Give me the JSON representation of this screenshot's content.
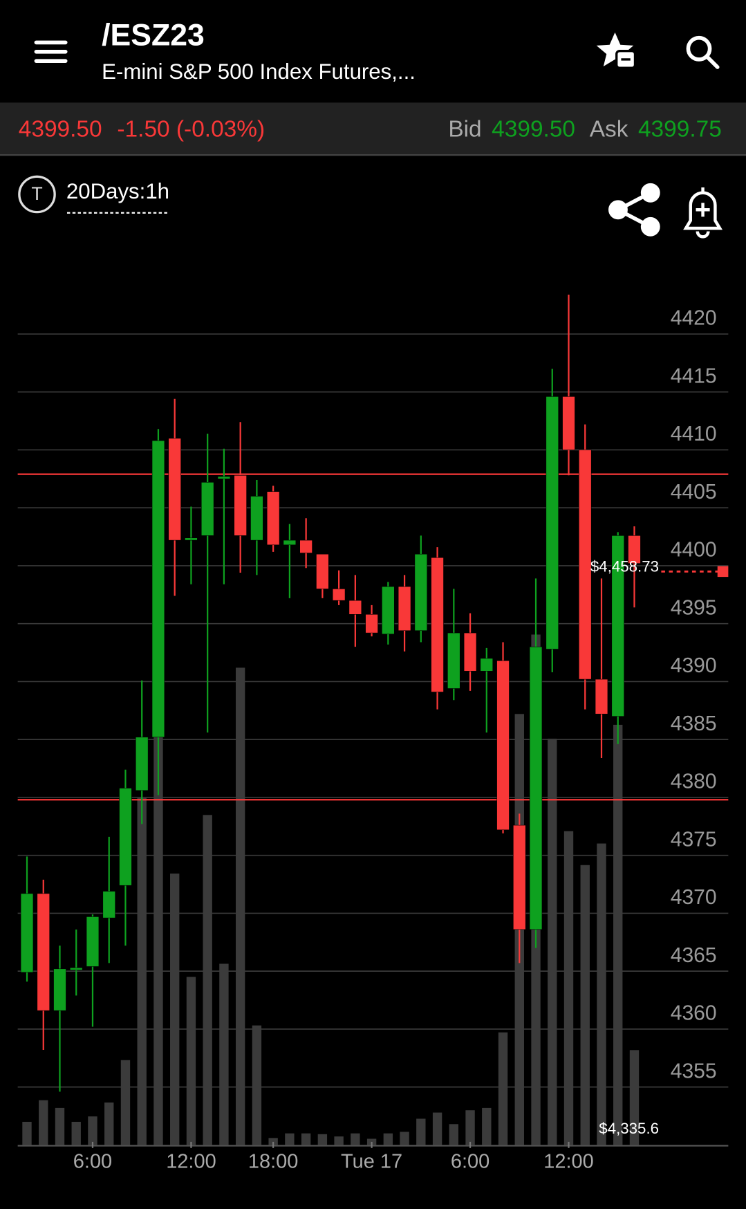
{
  "header": {
    "title": "/ESZ23",
    "subtitle": "E-mini S&P 500 Index Futures,..."
  },
  "quote": {
    "last": "4399.50",
    "change": "-1.50 (-0.03%)",
    "bid_label": "Bid",
    "bid": "4399.50",
    "ask_label": "Ask",
    "ask": "4399.75"
  },
  "toolbar": {
    "period_icon": "T",
    "period": "20Days:1h"
  },
  "chart_data": {
    "type": "candlestick",
    "categories": [
      null,
      null,
      null,
      null,
      "6:00",
      null,
      null,
      null,
      null,
      null,
      "12:00",
      null,
      null,
      null,
      null,
      "18:00",
      null,
      null,
      null,
      null,
      null,
      "Tue 17",
      null,
      null,
      null,
      null,
      null,
      "6:00",
      null,
      null,
      null,
      null,
      null,
      "12:00",
      null,
      null,
      null,
      null
    ],
    "open": [
      4364.9,
      4371.7,
      4361.6,
      4365.1,
      4365.4,
      4369.6,
      4372.4,
      4380.6,
      4385.2,
      4411.0,
      4402.2,
      4402.6,
      4407.5,
      4407.8,
      4402.2,
      4406.4,
      4401.8,
      4402.2,
      4401.0,
      4398.0,
      4397.0,
      4395.8,
      4394.1,
      4398.2,
      4394.4,
      4400.7,
      4389.4,
      4394.2,
      4390.9,
      4391.8,
      4377.6,
      4368.6,
      4392.8,
      4414.6,
      4410.0,
      4390.2,
      4387.0,
      4402.6
    ],
    "high": [
      4374.9,
      4372.9,
      4367.2,
      4368.6,
      4369.9,
      4376.6,
      4382.4,
      4390.1,
      4411.8,
      4414.4,
      4405.1,
      4411.4,
      4410.1,
      4412.4,
      4407.4,
      4406.9,
      4403.6,
      4404.1,
      4401.0,
      4399.6,
      4399.2,
      4396.6,
      4398.6,
      4399.2,
      4402.6,
      4401.6,
      4398.0,
      4395.9,
      4392.9,
      4393.4,
      4378.6,
      4398.9,
      4417.0,
      4423.4,
      4412.2,
      4398.9,
      4402.9,
      4403.4
    ],
    "low": [
      4364.1,
      4358.2,
      4354.6,
      4362.9,
      4360.2,
      4365.7,
      4367.2,
      4377.7,
      4380.2,
      4397.4,
      4398.4,
      4385.6,
      4398.4,
      4399.4,
      4399.2,
      4401.2,
      4397.2,
      4399.8,
      4397.2,
      4396.6,
      4393.0,
      4393.9,
      4393.2,
      4392.6,
      4393.4,
      4387.6,
      4388.4,
      4389.2,
      4385.6,
      4376.9,
      4365.7,
      4367.0,
      4390.8,
      4407.8,
      4387.6,
      4383.4,
      4384.6,
      4396.4
    ],
    "close": [
      4371.7,
      4361.6,
      4365.2,
      4365.3,
      4369.7,
      4371.9,
      4380.8,
      4385.2,
      4410.8,
      4402.2,
      4402.4,
      4407.2,
      4407.7,
      4402.6,
      4406.0,
      4401.8,
      4402.2,
      4401.1,
      4398.0,
      4397.0,
      4395.8,
      4394.2,
      4398.2,
      4394.4,
      4401.0,
      4389.1,
      4394.2,
      4390.9,
      4392.0,
      4377.2,
      4368.6,
      4393.0,
      4414.6,
      4410.0,
      4390.2,
      4387.2,
      4402.6,
      4400.2
    ],
    "volume": [
      30,
      58,
      48,
      30,
      37,
      55,
      110,
      450,
      535,
      352,
      218,
      428,
      235,
      619,
      155,
      9,
      15,
      15,
      14,
      11,
      15,
      8,
      15,
      17,
      34,
      42,
      27,
      45,
      48,
      146,
      559,
      662,
      527,
      407,
      363,
      391,
      545,
      123
    ],
    "ylim": [
      4350,
      4427
    ],
    "yticks": [
      4355,
      4360,
      4365,
      4370,
      4375,
      4380,
      4385,
      4390,
      4395,
      4400,
      4405,
      4410,
      4415,
      4420
    ],
    "grid": true,
    "up_color": "#0ea11f",
    "down_color": "#f93838",
    "volume_color": "#3b3b3b",
    "levels": [
      4407.9,
      4379.8
    ],
    "price_line": 4399.5,
    "annotations": [
      "$4,458.73",
      "$4,335.6"
    ]
  }
}
